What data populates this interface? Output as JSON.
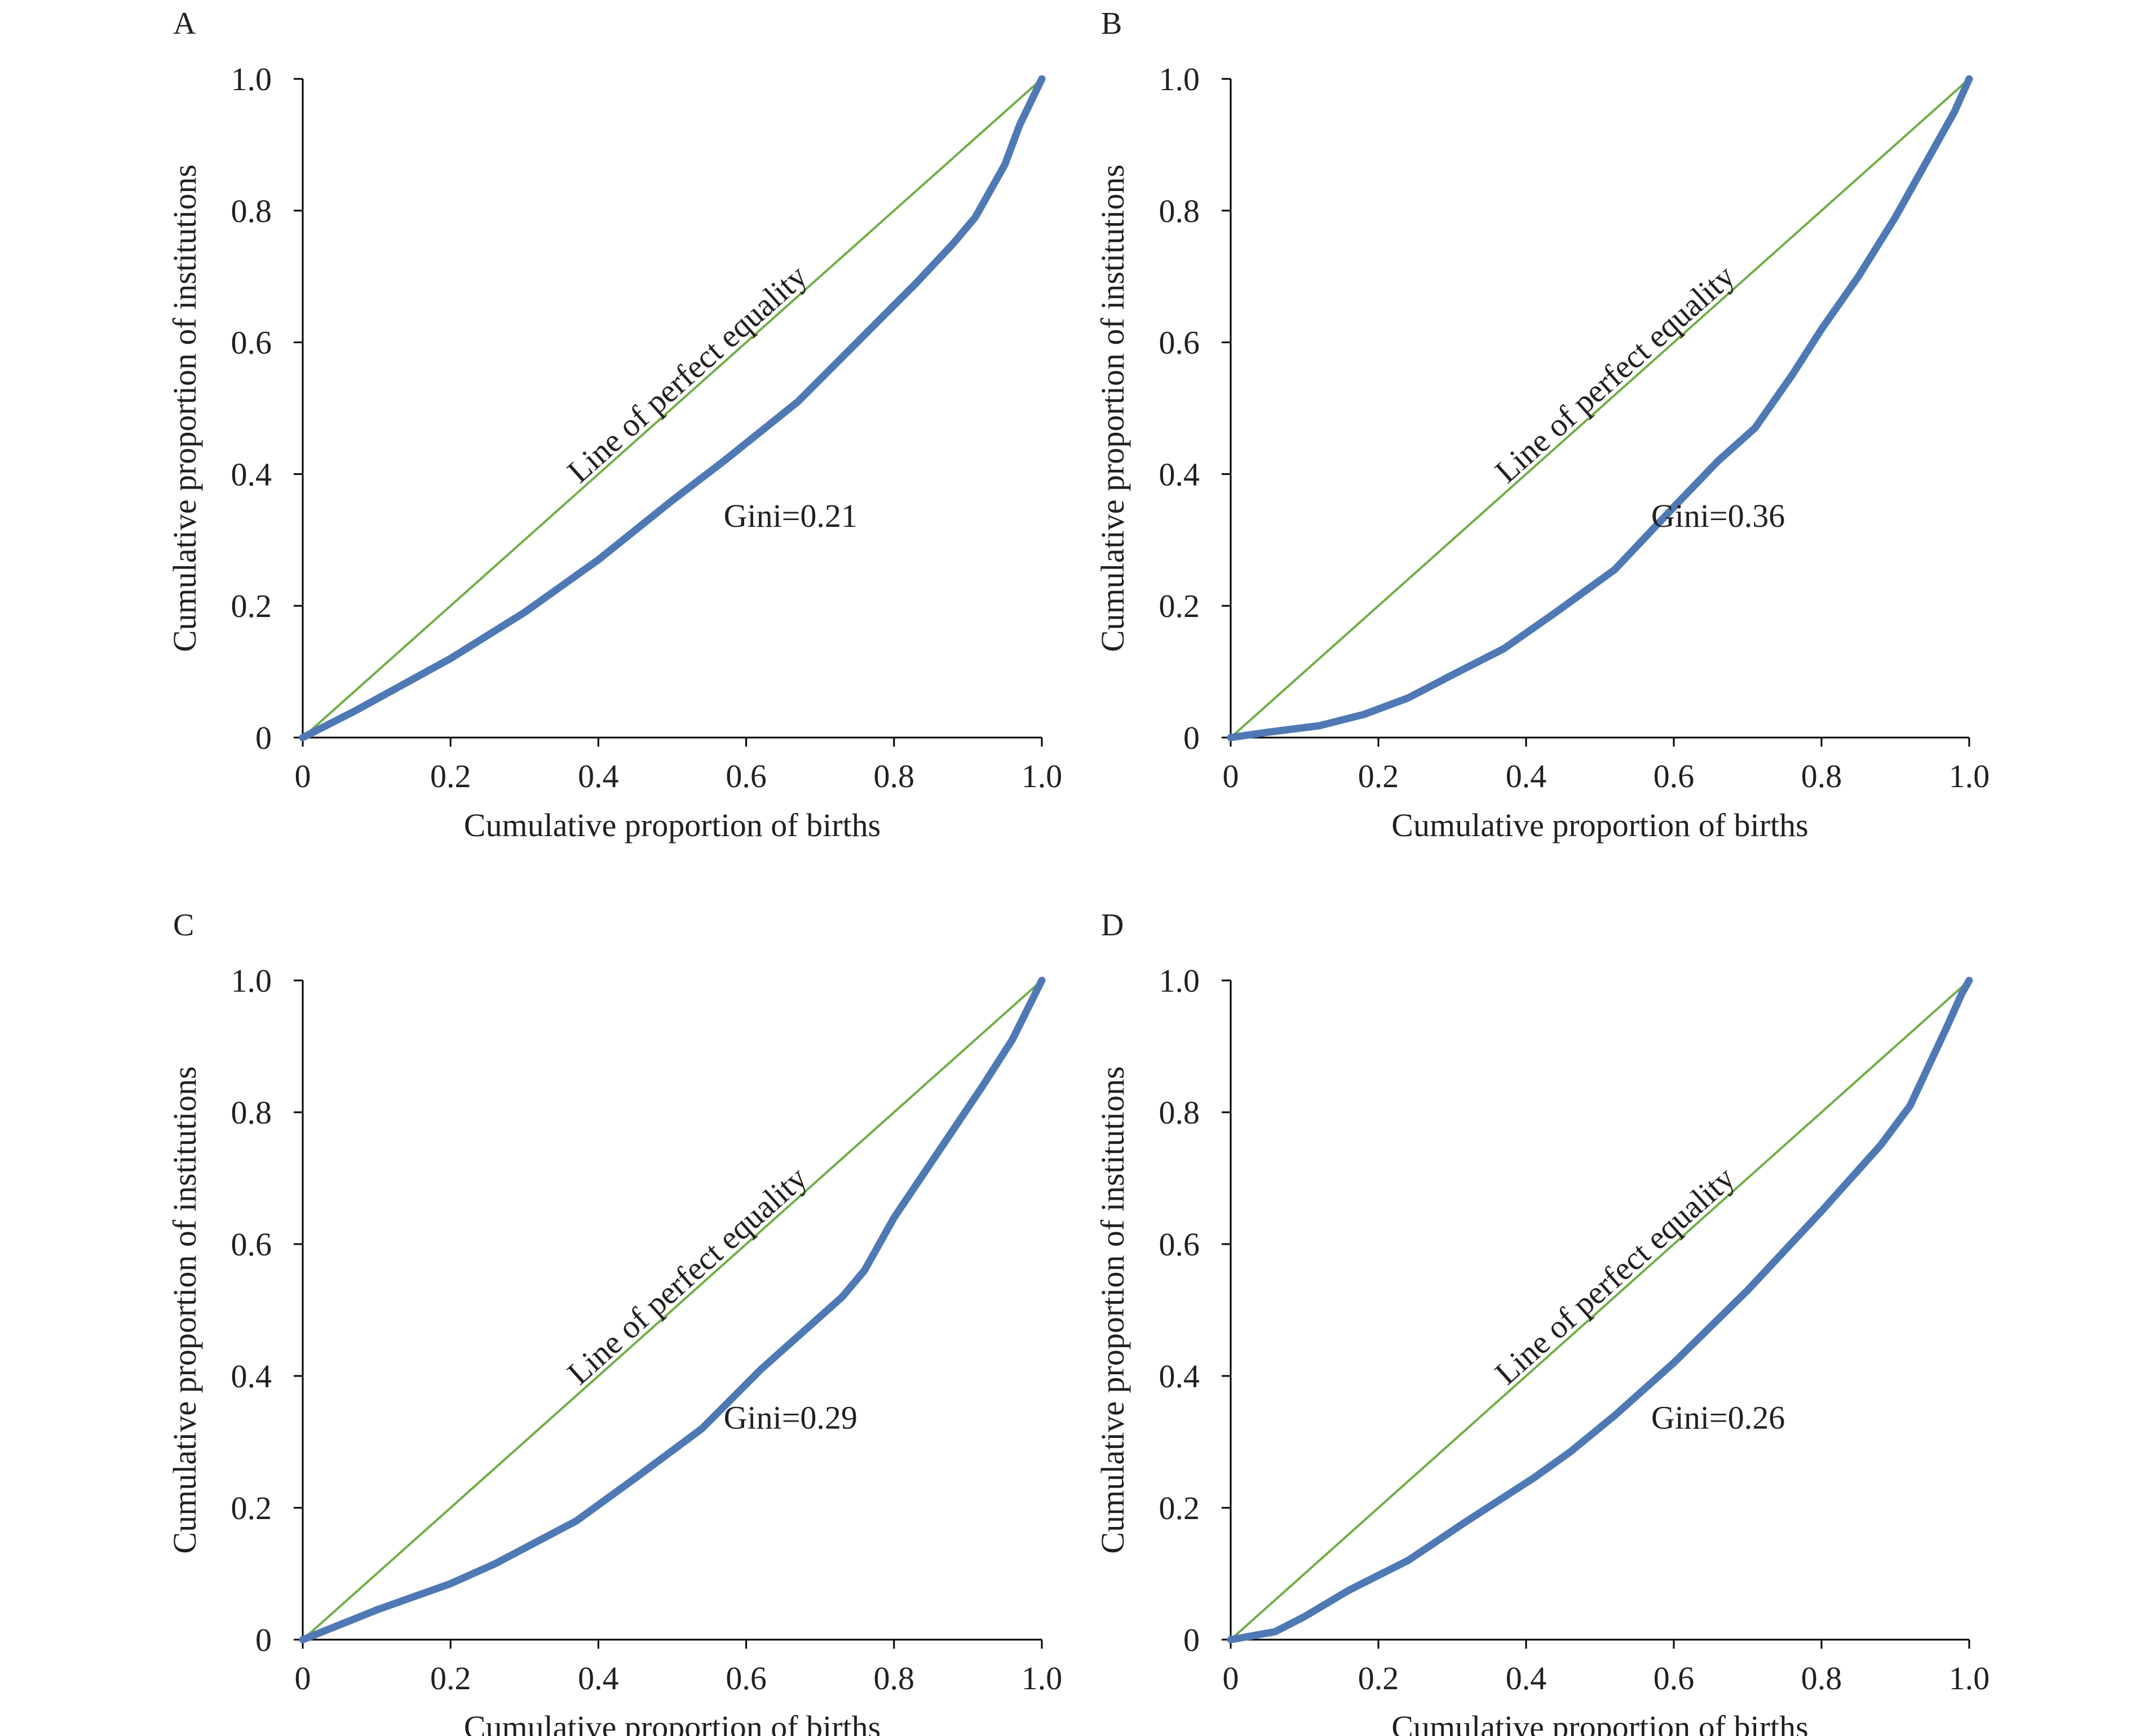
{
  "chart_data": [
    {
      "panel": "A",
      "type": "line",
      "xlabel": "Cumulative proportion of births",
      "ylabel": "Cumulative proportion of institutions",
      "xlim": [
        0,
        1.0
      ],
      "ylim": [
        0,
        1.0
      ],
      "x_ticks": [
        "0",
        "0.2",
        "0.4",
        "0.6",
        "0.8",
        "1.0"
      ],
      "y_ticks": [
        "0",
        "0.2",
        "0.4",
        "0.6",
        "0.8",
        "1.0"
      ],
      "equality_label": "Line of perfect equality",
      "gini_label": "Gini=0.21",
      "equality_line": {
        "x": [
          0,
          1.0
        ],
        "y": [
          0,
          1.0
        ],
        "color": "#70ad47"
      },
      "series": [
        {
          "color": "#4e79b4",
          "x": [
            0,
            0.07,
            0.2,
            0.3,
            0.4,
            0.5,
            0.57,
            0.67,
            0.75,
            0.83,
            0.88,
            0.91,
            0.95,
            0.97,
            1.0
          ],
          "y": [
            0,
            0.04,
            0.12,
            0.19,
            0.27,
            0.36,
            0.42,
            0.51,
            0.6,
            0.69,
            0.75,
            0.79,
            0.87,
            0.93,
            1.0
          ]
        }
      ],
      "grid": false
    },
    {
      "panel": "B",
      "type": "line",
      "xlabel": "Cumulative proportion of births",
      "ylabel": "Cumulative proportion of institutions",
      "xlim": [
        0,
        1.0
      ],
      "ylim": [
        0,
        1.0
      ],
      "x_ticks": [
        "0",
        "0.2",
        "0.4",
        "0.6",
        "0.8",
        "1.0"
      ],
      "y_ticks": [
        "0",
        "0.2",
        "0.4",
        "0.6",
        "0.8",
        "1.0"
      ],
      "equality_label": "Line of perfect equality",
      "gini_label": "Gini=0.36",
      "equality_line": {
        "x": [
          0,
          1.0
        ],
        "y": [
          0,
          1.0
        ],
        "color": "#70ad47"
      },
      "series": [
        {
          "color": "#4e79b4",
          "x": [
            0,
            0.05,
            0.12,
            0.18,
            0.24,
            0.3,
            0.37,
            0.44,
            0.52,
            0.6,
            0.66,
            0.71,
            0.76,
            0.8,
            0.85,
            0.9,
            0.95,
            0.98,
            1.0
          ],
          "y": [
            0,
            0.008,
            0.018,
            0.035,
            0.06,
            0.095,
            0.135,
            0.19,
            0.255,
            0.35,
            0.42,
            0.47,
            0.55,
            0.62,
            0.7,
            0.79,
            0.89,
            0.95,
            1.0
          ]
        }
      ],
      "grid": false
    },
    {
      "panel": "C",
      "type": "line",
      "xlabel": "Cumulative proportion of births",
      "ylabel": "Cumulative proportion of institutions",
      "xlim": [
        0,
        1.0
      ],
      "ylim": [
        0,
        1.0
      ],
      "x_ticks": [
        "0",
        "0.2",
        "0.4",
        "0.6",
        "0.8",
        "1.0"
      ],
      "y_ticks": [
        "0",
        "0.2",
        "0.4",
        "0.6",
        "0.8",
        "1.0"
      ],
      "equality_label": "Line of perfect equality",
      "gini_label": "Gini=0.29",
      "equality_line": {
        "x": [
          0,
          1.0
        ],
        "y": [
          0,
          1.0
        ],
        "color": "#70ad47"
      },
      "series": [
        {
          "color": "#4e79b4",
          "x": [
            0,
            0.1,
            0.2,
            0.26,
            0.37,
            0.45,
            0.54,
            0.62,
            0.68,
            0.73,
            0.76,
            0.8,
            0.86,
            0.92,
            0.96,
            1.0
          ],
          "y": [
            0,
            0.045,
            0.085,
            0.115,
            0.18,
            0.245,
            0.32,
            0.41,
            0.47,
            0.52,
            0.56,
            0.64,
            0.74,
            0.84,
            0.91,
            1.0
          ]
        }
      ],
      "grid": false
    },
    {
      "panel": "D",
      "type": "line",
      "xlabel": "Cumulative proportion of births",
      "ylabel": "Cumulative proportion of institutions",
      "xlim": [
        0,
        1.0
      ],
      "ylim": [
        0,
        1.0
      ],
      "x_ticks": [
        "0",
        "0.2",
        "0.4",
        "0.6",
        "0.8",
        "1.0"
      ],
      "y_ticks": [
        "0",
        "0.2",
        "0.4",
        "0.6",
        "0.8",
        "1.0"
      ],
      "equality_label": "Line of perfect equality",
      "gini_label": "Gini=0.26",
      "equality_line": {
        "x": [
          0,
          1.0
        ],
        "y": [
          0,
          1.0
        ],
        "color": "#70ad47"
      },
      "series": [
        {
          "color": "#4e79b4",
          "x": [
            0,
            0.06,
            0.1,
            0.16,
            0.24,
            0.32,
            0.41,
            0.46,
            0.52,
            0.6,
            0.7,
            0.8,
            0.88,
            0.92,
            0.97,
            0.99,
            1.0
          ],
          "y": [
            0,
            0.012,
            0.035,
            0.075,
            0.12,
            0.18,
            0.245,
            0.285,
            0.34,
            0.42,
            0.53,
            0.65,
            0.75,
            0.81,
            0.93,
            0.98,
            1.0
          ]
        }
      ],
      "grid": false
    }
  ]
}
